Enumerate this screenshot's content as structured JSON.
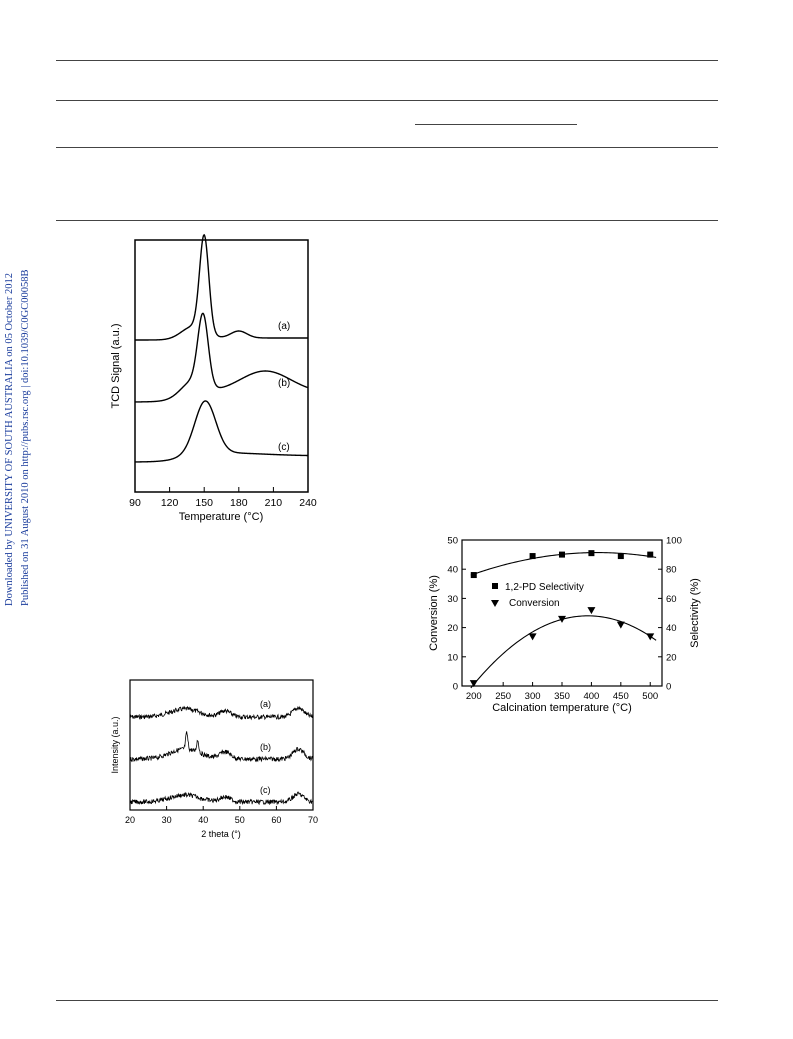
{
  "sidebar": {
    "line1": "Downloaded by UNIVERSITY OF SOUTH AUSTRALIA on 05 October 2012",
    "line2": "Published on 31 August 2010 on http://pubs.rsc.org | doi:10.1039/C0GC00058B"
  },
  "chart_data": [
    {
      "type": "line",
      "xlabel": "Temperature (°C)",
      "ylabel": "TCD Signal (a.u.)",
      "xlim": [
        90,
        240
      ],
      "xticks": [
        90,
        120,
        150,
        180,
        210,
        240
      ],
      "series": [
        {
          "name": "(a)",
          "peaks": [
            150,
            180
          ]
        },
        {
          "name": "(b)",
          "peaks": [
            149,
            200
          ]
        },
        {
          "name": "(c)",
          "peaks": [
            151
          ]
        }
      ]
    },
    {
      "type": "line",
      "xlabel": "2 theta (°)",
      "ylabel": "Intensity (a.u.)",
      "xlim": [
        20,
        70
      ],
      "xticks": [
        20,
        30,
        40,
        50,
        60,
        70
      ],
      "series": [
        {
          "name": "(a)",
          "peaks": [
            35,
            46,
            66
          ]
        },
        {
          "name": "(b)",
          "peaks": [
            35,
            38,
            46,
            66
          ]
        },
        {
          "name": "(c)",
          "peaks": [
            35,
            46,
            66
          ]
        }
      ]
    },
    {
      "type": "scatter",
      "xlabel": "Calcination temperature (°C)",
      "ylabel": "Conversion (%)",
      "y2label": "Selectivity (%)",
      "xlim": [
        180,
        520
      ],
      "xticks": [
        200,
        250,
        300,
        350,
        400,
        450,
        500
      ],
      "ylim": [
        0,
        50
      ],
      "yticks": [
        0,
        10,
        20,
        30,
        40,
        50
      ],
      "y2lim": [
        0,
        100
      ],
      "y2ticks": [
        0,
        20,
        40,
        60,
        80,
        100
      ],
      "legend": "top-left",
      "series": [
        {
          "name": "1,2-PD Selectivity",
          "marker": "square",
          "axis": "right",
          "x": [
            200,
            300,
            350,
            400,
            450,
            500
          ],
          "y": [
            76,
            89,
            90,
            91,
            89,
            90
          ]
        },
        {
          "name": "Conversion",
          "marker": "triangle-down",
          "axis": "left",
          "x": [
            200,
            300,
            350,
            400,
            450,
            500
          ],
          "y": [
            1,
            17,
            23,
            26,
            21,
            17
          ]
        }
      ]
    }
  ]
}
